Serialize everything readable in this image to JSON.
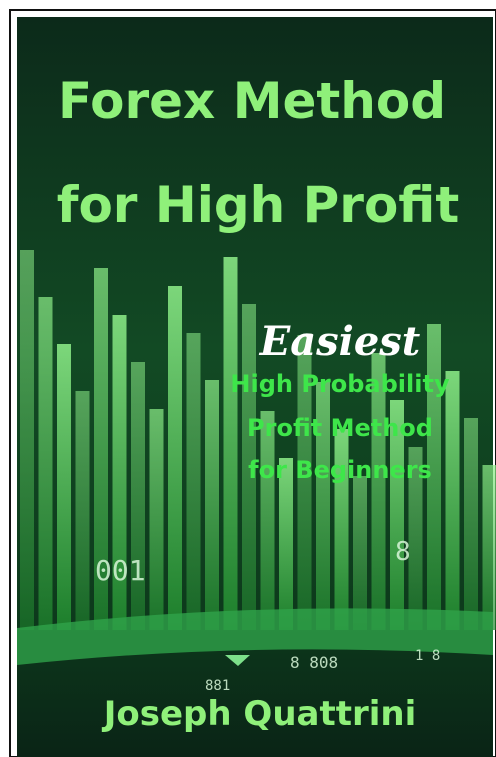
{
  "cover": {
    "title_lines": [
      "Forex Method",
      "for High Profit"
    ],
    "tagline": "Easiest",
    "subtitle_lines": [
      "High Probability",
      "Profit Method",
      "for Beginners"
    ],
    "author": "Joseph Quattrini",
    "background_digits": [
      "001",
      "8",
      "8 808",
      "1 8",
      "881"
    ]
  }
}
